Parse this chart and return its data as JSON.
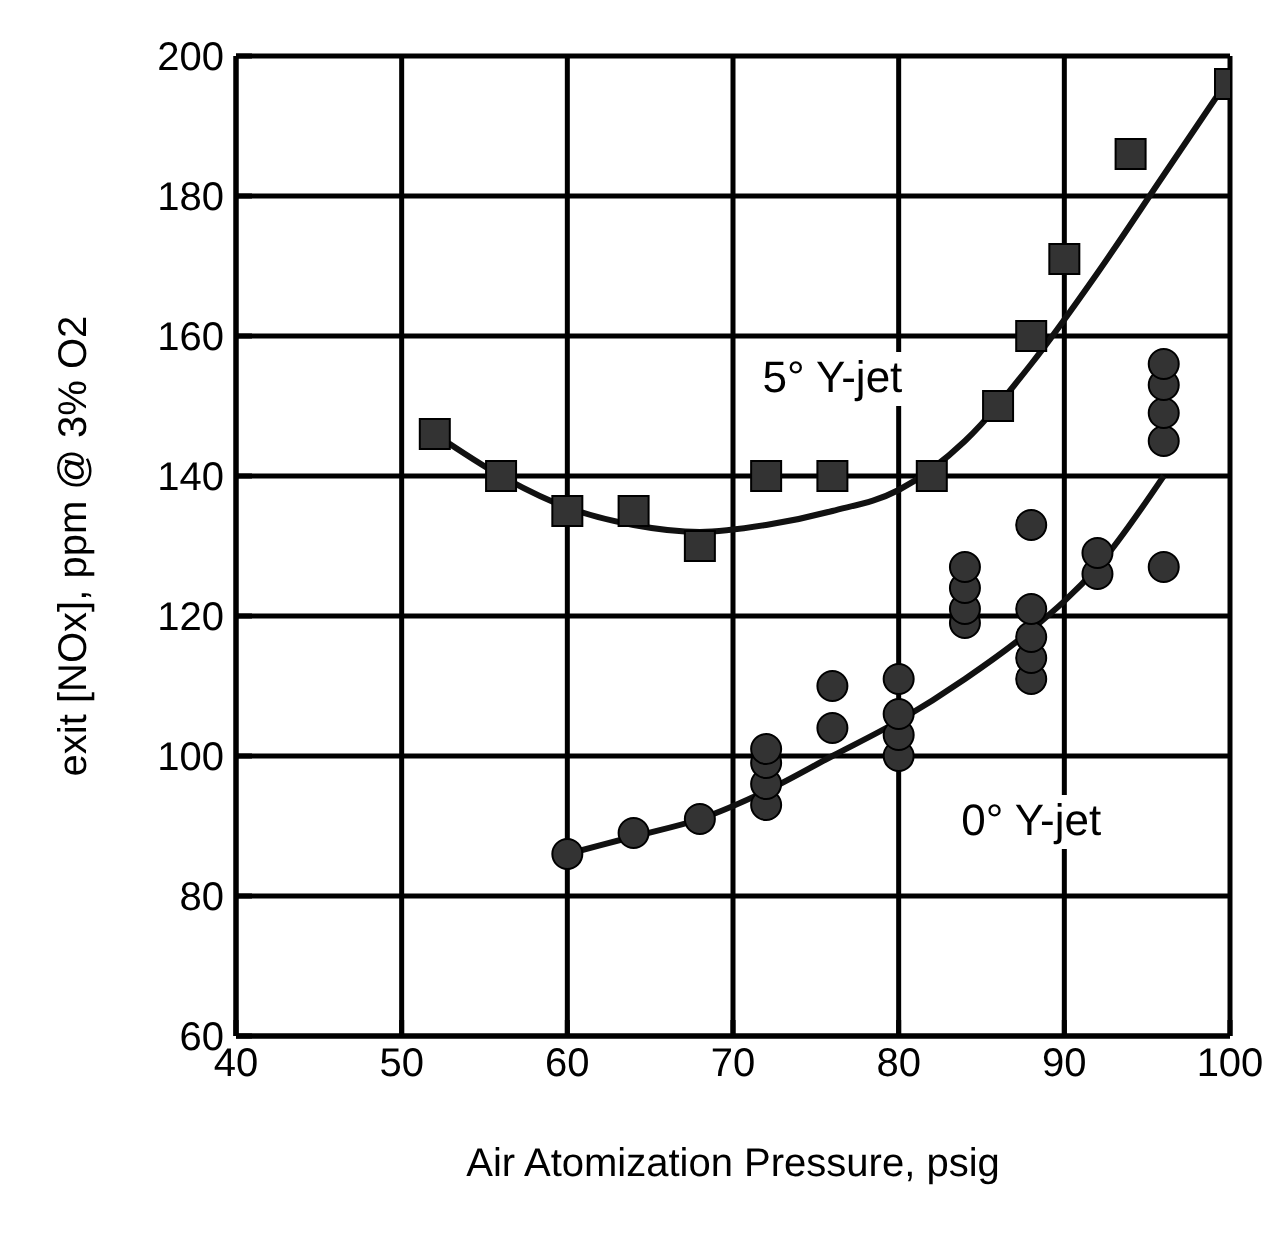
{
  "chart_data": {
    "type": "scatter",
    "xlabel": "Air Atomization Pressure, psig",
    "ylabel": "exit [NOx], ppm @ 3% O2",
    "xlim": [
      40,
      100
    ],
    "ylim": [
      60,
      200
    ],
    "xticks": [
      40,
      50,
      60,
      70,
      80,
      90,
      100
    ],
    "yticks": [
      60,
      80,
      100,
      120,
      140,
      160,
      180,
      200
    ],
    "grid": true,
    "legend": false,
    "series": [
      {
        "name": "5° Y-jet",
        "marker": "square",
        "color": "#333333",
        "x": [
          52,
          56,
          60,
          64,
          68,
          72,
          76,
          82,
          86,
          88,
          90,
          94,
          100
        ],
        "values": [
          146,
          140,
          135,
          135,
          130,
          140,
          140,
          140,
          150,
          160,
          171,
          186,
          196
        ]
      },
      {
        "name": "0° Y-jet",
        "marker": "circle",
        "color": "#333333",
        "x": [
          60,
          64,
          68,
          72,
          72,
          72,
          72,
          76,
          76,
          80,
          80,
          80,
          80,
          84,
          84,
          84,
          84,
          88,
          88,
          88,
          88,
          88,
          92,
          92,
          96,
          96,
          96,
          96,
          96
        ],
        "values": [
          86,
          89,
          91,
          93,
          96,
          99,
          101,
          104,
          110,
          100,
          103,
          106,
          111,
          119,
          121,
          124,
          127,
          111,
          114,
          117,
          121,
          133,
          126,
          129,
          127,
          145,
          149,
          153,
          156
        ]
      },
      {
        "type": "line",
        "marker": "none",
        "color": "#111111",
        "x": [
          52,
          56,
          60,
          64,
          68,
          72,
          76,
          80,
          84,
          88,
          92,
          96,
          100
        ],
        "values": [
          146,
          140,
          135.5,
          133,
          132,
          133,
          135,
          138,
          145,
          156,
          169,
          183,
          197
        ]
      },
      {
        "type": "line",
        "marker": "none",
        "color": "#111111",
        "x": [
          60,
          64,
          68,
          72,
          76,
          80,
          84,
          88,
          92,
          96
        ],
        "values": [
          86,
          88.5,
          91,
          95,
          100,
          105,
          111,
          118,
          127,
          140
        ]
      }
    ]
  }
}
